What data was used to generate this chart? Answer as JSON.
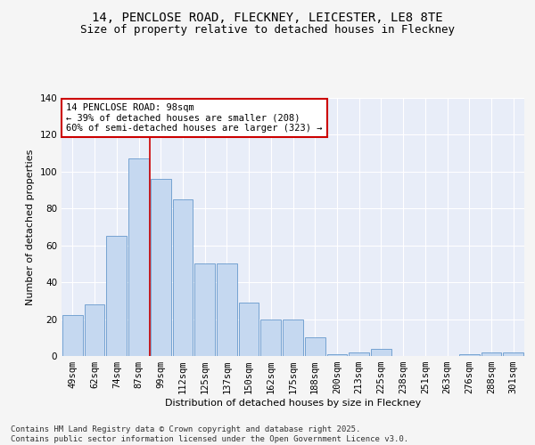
{
  "title_line1": "14, PENCLOSE ROAD, FLECKNEY, LEICESTER, LE8 8TE",
  "title_line2": "Size of property relative to detached houses in Fleckney",
  "categories": [
    "49sqm",
    "62sqm",
    "74sqm",
    "87sqm",
    "99sqm",
    "112sqm",
    "125sqm",
    "137sqm",
    "150sqm",
    "162sqm",
    "175sqm",
    "188sqm",
    "200sqm",
    "213sqm",
    "225sqm",
    "238sqm",
    "251sqm",
    "263sqm",
    "276sqm",
    "288sqm",
    "301sqm"
  ],
  "values": [
    22,
    28,
    65,
    107,
    96,
    85,
    50,
    50,
    29,
    20,
    20,
    10,
    1,
    2,
    4,
    0,
    0,
    0,
    1,
    2,
    2
  ],
  "bar_color": "#c5d8f0",
  "bar_edge_color": "#6699cc",
  "plot_bg_color": "#e8edf8",
  "fig_bg_color": "#f5f5f5",
  "xlabel": "Distribution of detached houses by size in Fleckney",
  "ylabel": "Number of detached properties",
  "vline_x_index": 3.5,
  "vline_color": "#cc0000",
  "annotation_line1": "14 PENCLOSE ROAD: 98sqm",
  "annotation_line2": "← 39% of detached houses are smaller (208)",
  "annotation_line3": "60% of semi-detached houses are larger (323) →",
  "annotation_box_color": "#ffffff",
  "annotation_box_edge": "#cc0000",
  "ylim": [
    0,
    140
  ],
  "yticks": [
    0,
    20,
    40,
    60,
    80,
    100,
    120,
    140
  ],
  "footer_text": "Contains HM Land Registry data © Crown copyright and database right 2025.\nContains public sector information licensed under the Open Government Licence v3.0.",
  "title_fontsize": 10,
  "subtitle_fontsize": 9,
  "axis_label_fontsize": 8,
  "tick_fontsize": 7.5,
  "annotation_fontsize": 7.5,
  "footer_fontsize": 6.5
}
